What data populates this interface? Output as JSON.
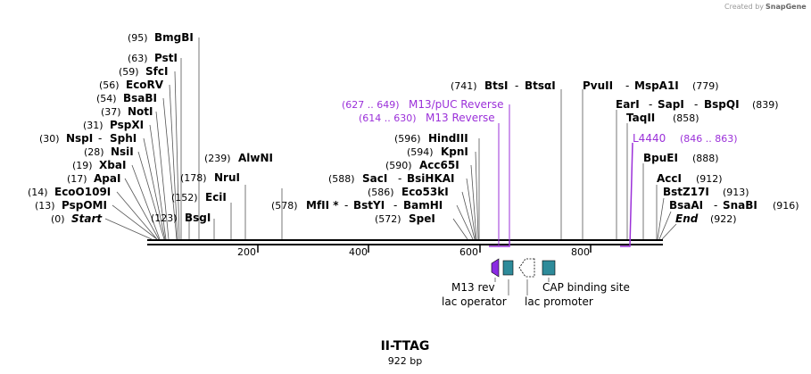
{
  "credit": {
    "prefix": "Created by",
    "brand": "SnapGene"
  },
  "plasmid": {
    "name": "II-TTAG",
    "length_label": "922 bp"
  },
  "ruler": {
    "ticks": [
      "200",
      "400",
      "600",
      "800"
    ]
  },
  "sites_left": [
    {
      "pos": "(95)",
      "name": "BmgBI"
    },
    {
      "pos": "(63)",
      "name": "PstI"
    },
    {
      "pos": "(59)",
      "name": "SfcI"
    },
    {
      "pos": "(56)",
      "name": "EcoRV"
    },
    {
      "pos": "(54)",
      "name": "BsaBI"
    },
    {
      "pos": "(37)",
      "name": "NotI"
    },
    {
      "pos": "(31)",
      "name": "PspXI"
    },
    {
      "pos": "(30)",
      "name": "NspI",
      "name2": "SphI"
    },
    {
      "pos": "(28)",
      "name": "NsiI"
    },
    {
      "pos": "(19)",
      "name": "XbaI"
    },
    {
      "pos": "(17)",
      "name": "ApaI"
    },
    {
      "pos": "(14)",
      "name": "EcoO109I"
    },
    {
      "pos": "(13)",
      "name": "PspOMI"
    },
    {
      "pos": "(0)",
      "name": "Start"
    }
  ],
  "sites_mid": [
    {
      "pos": "(239)",
      "name": "AlwNI"
    },
    {
      "pos": "(178)",
      "name": "NruI"
    },
    {
      "pos": "(152)",
      "name": "EciI"
    },
    {
      "pos": "(123)",
      "name": "BsgI"
    }
  ],
  "sites_center": [
    {
      "pos": "(596)",
      "name": "HindIII"
    },
    {
      "pos": "(594)",
      "name": "KpnI"
    },
    {
      "pos": "(590)",
      "name": "Acc65I"
    },
    {
      "pos": "(588)",
      "name": "SacI",
      "name2": "BsiHKAI"
    },
    {
      "pos": "(586)",
      "name": "Eco53kI"
    },
    {
      "pos": "(578)",
      "name": "MfII *",
      "name2": "BstYI",
      "name3": "BamHI"
    },
    {
      "pos": "(572)",
      "name": "SpeI"
    }
  ],
  "sites_top": [
    {
      "pos": "(741)",
      "name": "BtsI",
      "name2": "BtsαI"
    },
    {
      "name": "PvuII",
      "name2": "MspA1I",
      "pos": "(779)"
    }
  ],
  "sites_right": [
    {
      "name": "EarI",
      "name2": "SapI",
      "name3": "BspQI",
      "pos": "(839)"
    },
    {
      "name": "TaqII",
      "pos": "(858)"
    },
    {
      "name": "BpuEI",
      "pos": "(888)"
    },
    {
      "name": "AccI",
      "pos": "(912)"
    },
    {
      "name": "BstZ17I",
      "pos": "(913)"
    },
    {
      "name": "BsaAI",
      "name2": "SnaBI",
      "pos": "(916)"
    },
    {
      "name": "End",
      "pos": "(922)"
    }
  ],
  "primers": [
    {
      "range": "(627 .. 649)",
      "name": "M13/pUC Reverse"
    },
    {
      "range": "(614 .. 630)",
      "name": "M13 Reverse"
    },
    {
      "name": "L4440",
      "range": "(846 .. 863)"
    }
  ],
  "features": {
    "m13_rev": "M13 rev",
    "lac_operator": "lac operator",
    "lac_promoter": "lac promoter",
    "cap_site": "CAP binding site"
  },
  "colors": {
    "primer": "#9b30d9",
    "m13_rev": "#8a2be2",
    "operator": "#2e8b9a",
    "promoter": "#ffffff",
    "cap": "#2e8b9a"
  }
}
